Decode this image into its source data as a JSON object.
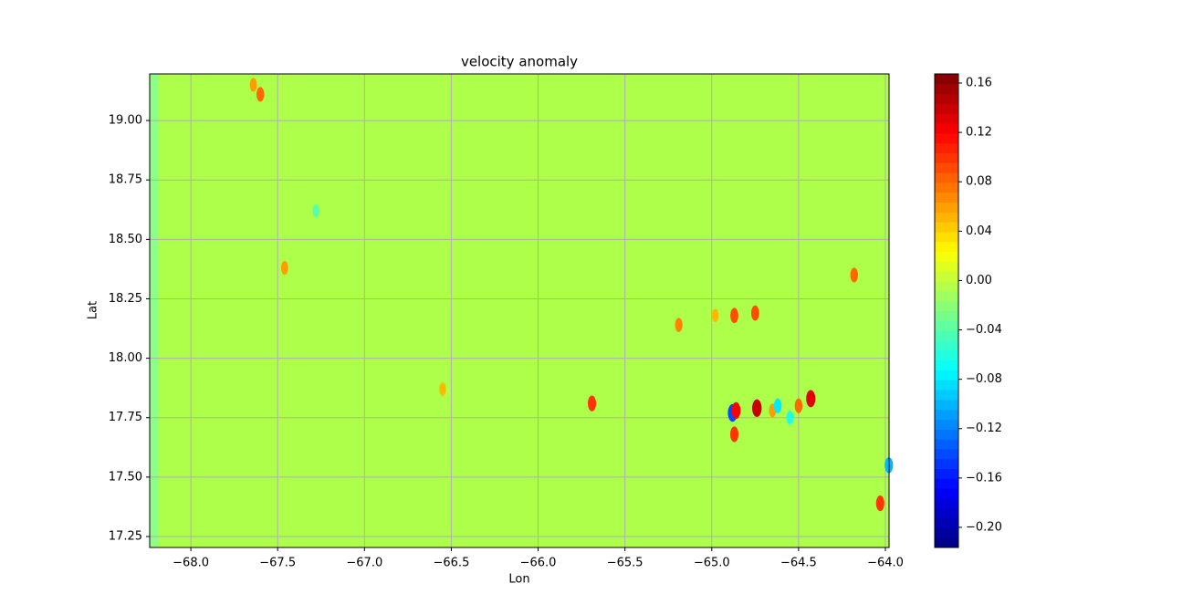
{
  "chart_data": {
    "type": "contour",
    "title": "velocity anomaly",
    "x_label": "Lon",
    "y_label": "Lat",
    "colormap": "jet",
    "grid": true,
    "xlim": [
      -68.237,
      -63.979
    ],
    "ylim": [
      17.204,
      19.196
    ],
    "xticks": [
      {
        "value": -68,
        "label": "−68.0"
      },
      {
        "value": -67.5,
        "label": "−67.5"
      },
      {
        "value": -67,
        "label": "−67.0"
      },
      {
        "value": -66.5,
        "label": "−66.5"
      },
      {
        "value": -66,
        "label": "−66.0"
      },
      {
        "value": -65.5,
        "label": "−65.5"
      },
      {
        "value": -65,
        "label": "−65.0"
      },
      {
        "value": -64.5,
        "label": "−64.5"
      },
      {
        "value": -64,
        "label": "−64.0"
      }
    ],
    "yticks": [
      {
        "value": 17.25,
        "label": "17.25"
      },
      {
        "value": 17.5,
        "label": "17.50"
      },
      {
        "value": 17.75,
        "label": "17.75"
      },
      {
        "value": 18,
        "label": "18.00"
      },
      {
        "value": 18.25,
        "label": "18.25"
      },
      {
        "value": 18.5,
        "label": "18.50"
      },
      {
        "value": 18.75,
        "label": "18.75"
      },
      {
        "value": 19,
        "label": "19.00"
      }
    ],
    "clim": [
      -0.2163,
      0.1674
    ],
    "cticks": [
      {
        "value": -0.2,
        "label": "−0.20"
      },
      {
        "value": -0.16,
        "label": "−0.16"
      },
      {
        "value": -0.12,
        "label": "−0.12"
      },
      {
        "value": -0.08,
        "label": "−0.08"
      },
      {
        "value": -0.04,
        "label": "−0.04"
      },
      {
        "value": 0,
        "label": "0.00"
      },
      {
        "value": 0.04,
        "label": "0.04"
      },
      {
        "value": 0.08,
        "label": "0.08"
      },
      {
        "value": 0.12,
        "label": "0.12"
      },
      {
        "value": 0.16,
        "label": "0.16"
      }
    ],
    "x": [
      -64.88,
      -64.86,
      -64.87,
      -64.74,
      -64.43,
      -65.69,
      -64.87,
      -64.75,
      -64.98,
      -65.19,
      -64.03,
      -64.18,
      -67.6,
      -67.64,
      -64.55,
      -64.65,
      -64.5,
      -67.46,
      -67.28,
      -66.55,
      -64.62,
      -63.98
    ],
    "y": [
      17.77,
      17.78,
      17.68,
      17.79,
      17.83,
      17.81,
      18.18,
      18.19,
      18.18,
      18.14,
      17.39,
      18.35,
      19.11,
      19.15,
      17.75,
      17.78,
      17.8,
      18.38,
      18.62,
      17.87,
      17.8,
      17.55
    ],
    "values": [
      -0.14,
      0.12,
      0.1,
      0.14,
      0.13,
      0.1,
      0.09,
      0.09,
      0.05,
      0.07,
      0.1,
      0.08,
      0.08,
      0.06,
      -0.06,
      0.06,
      0.08,
      0.06,
      -0.04,
      0.05,
      -0.08,
      -0.1
    ]
  }
}
